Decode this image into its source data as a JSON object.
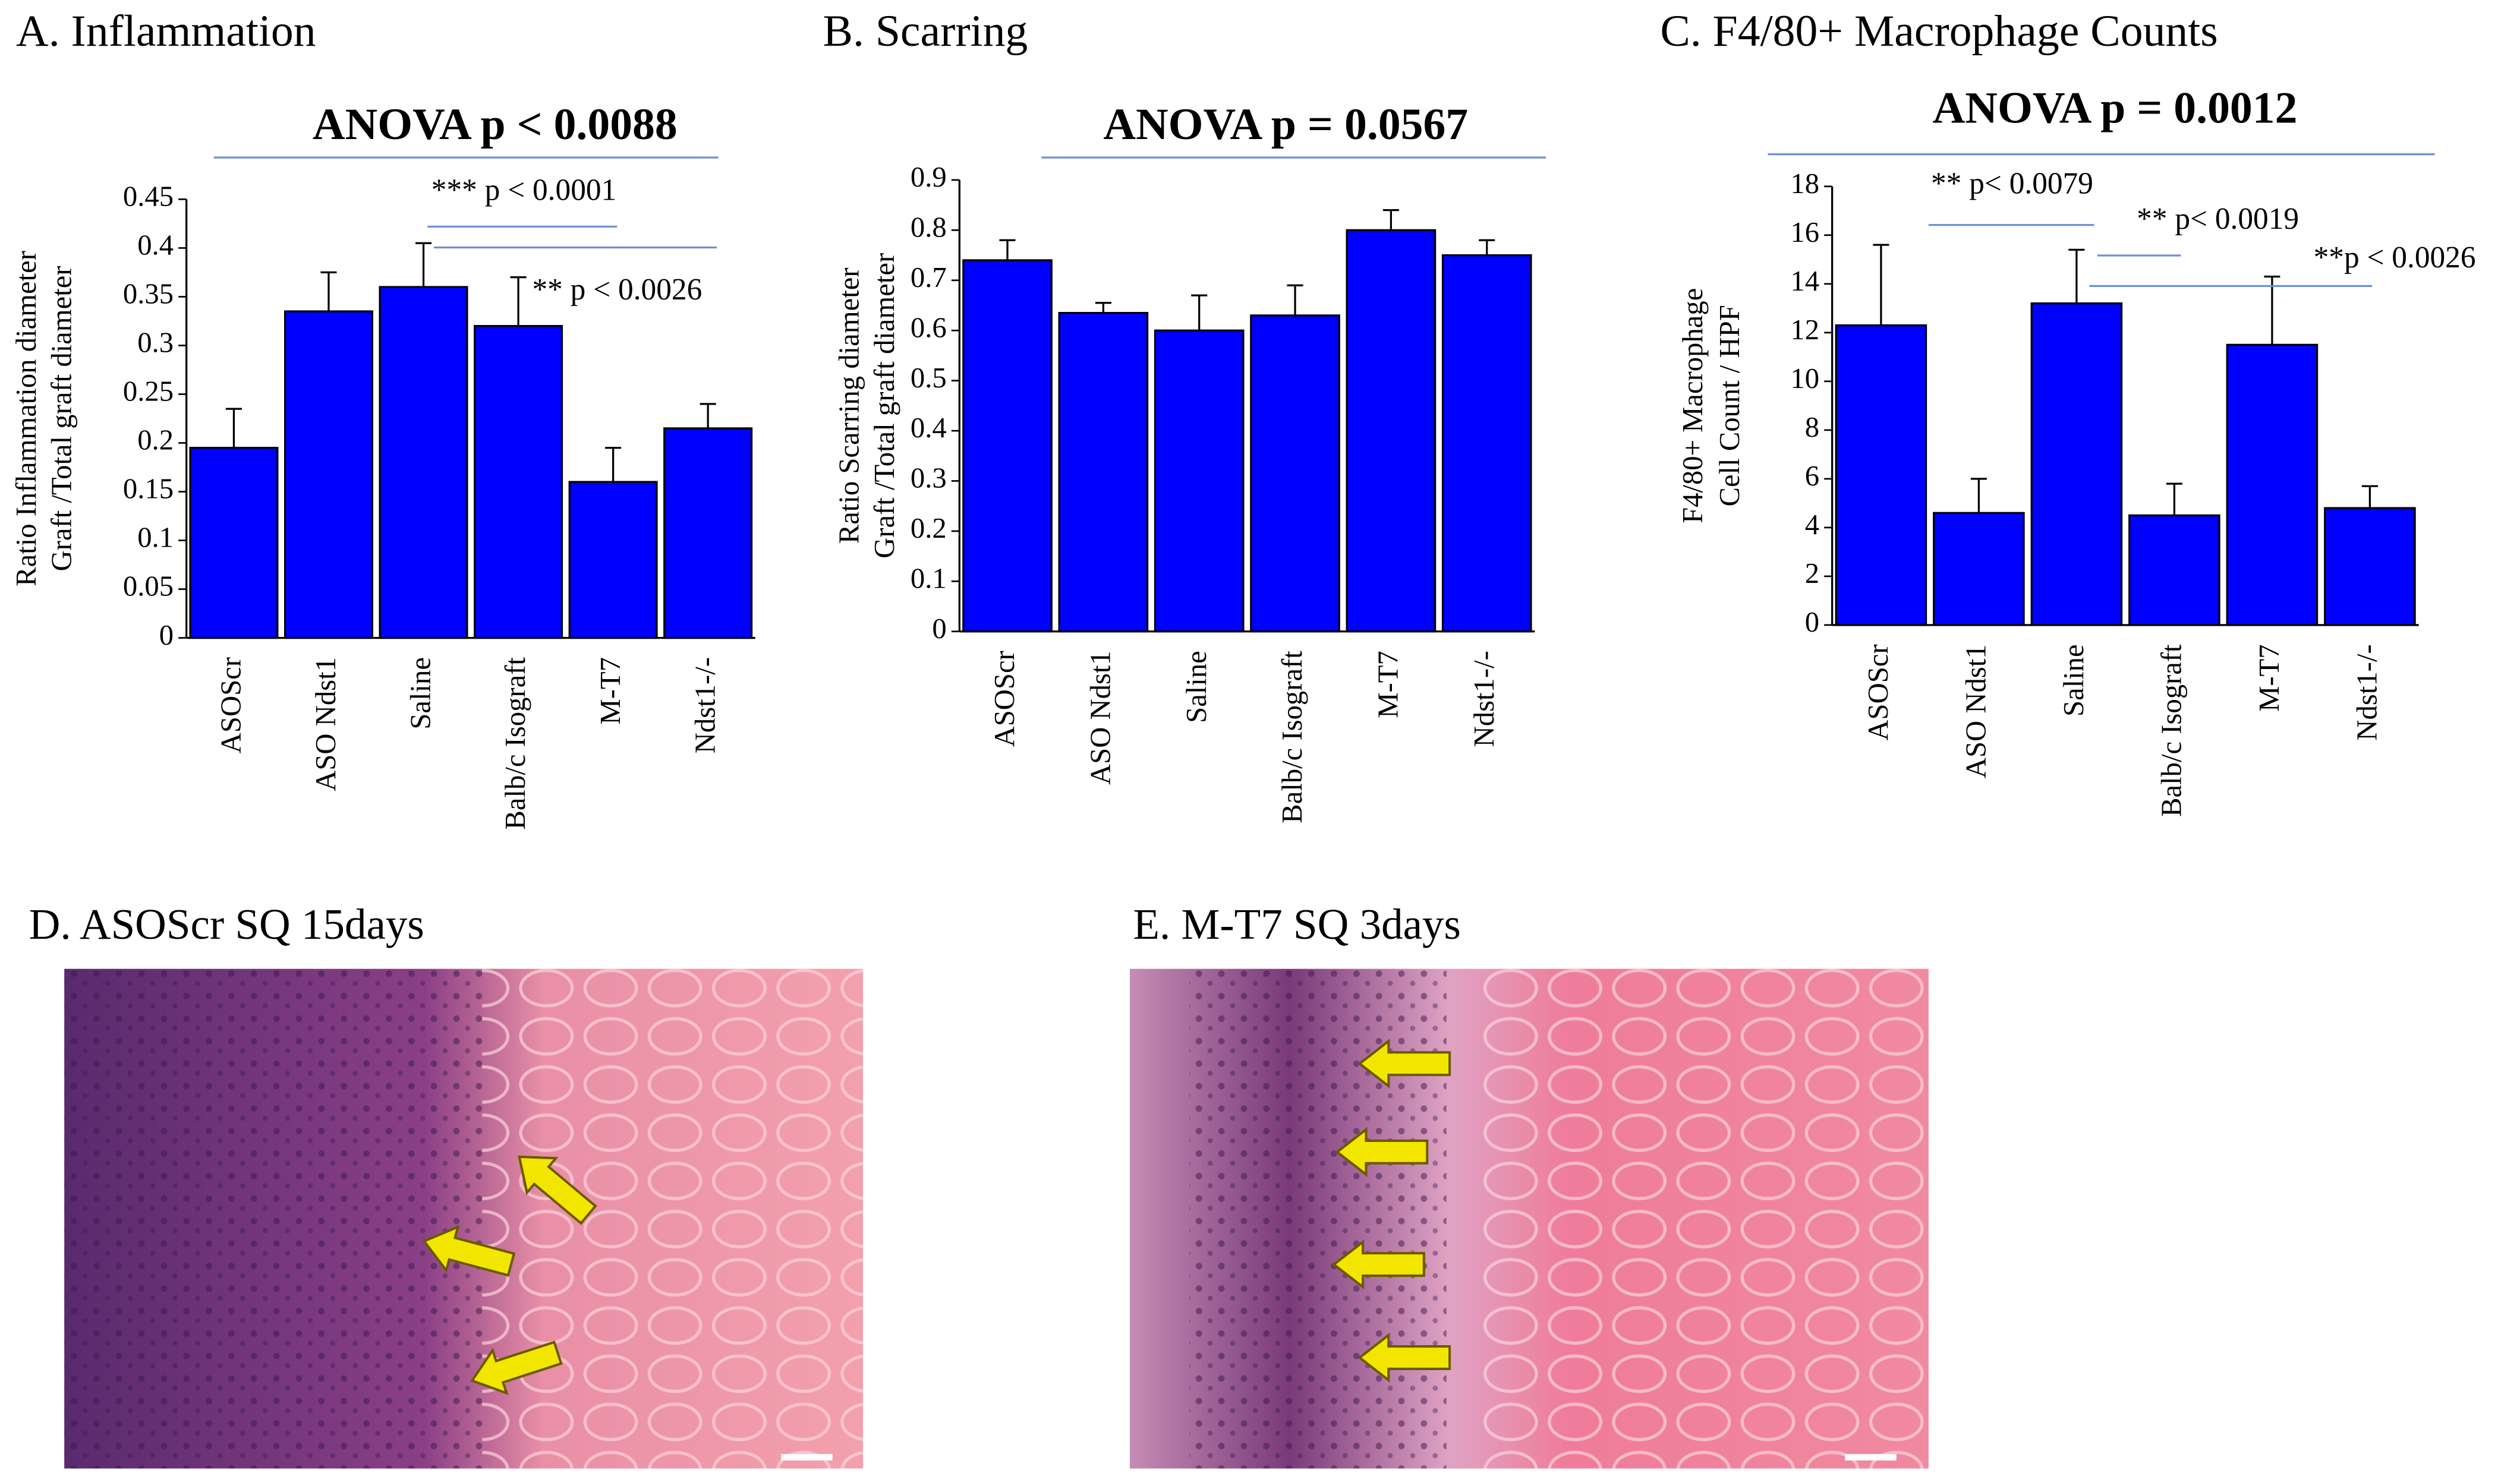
{
  "chart_data": [
    {
      "type": "bar",
      "title": "A. Inflammation",
      "ylabel": [
        "Ratio Inflammation  diameter",
        "Graft /Total graft diameter"
      ],
      "categories": [
        "ASOScr",
        "ASO Ndst1",
        "Saline",
        "Balb/c Isograft",
        "M-T7",
        "Ndst1-/-"
      ],
      "values": [
        0.195,
        0.335,
        0.36,
        0.32,
        0.16,
        0.215
      ],
      "errors": [
        0.04,
        0.04,
        0.045,
        0.05,
        0.035,
        0.025
      ],
      "color": "#0000ff",
      "ylim": [
        0,
        0.45
      ],
      "yticks": [
        0,
        0.05,
        0.1,
        0.15,
        0.2,
        0.25,
        0.3,
        0.35,
        0.4,
        0.45
      ],
      "annotations": [
        "ANOVA p < 0.0088",
        "*** p < 0.0001",
        "** p < 0.0026"
      ]
    },
    {
      "type": "bar",
      "title": "B. Scarring",
      "ylabel": [
        "Ratio Scarring diameter",
        "Graft /Total graft diameter"
      ],
      "categories": [
        "ASOScr",
        "ASO Ndst1",
        "Saline",
        "Balb/c Isograft",
        "M-T7",
        "Ndst1-/-"
      ],
      "values": [
        0.74,
        0.635,
        0.6,
        0.63,
        0.8,
        0.75
      ],
      "errors": [
        0.04,
        0.02,
        0.07,
        0.06,
        0.04,
        0.03
      ],
      "color": "#0000ff",
      "ylim": [
        0,
        0.9
      ],
      "yticks": [
        0,
        0.1,
        0.2,
        0.3,
        0.4,
        0.5,
        0.6,
        0.7,
        0.8,
        0.9
      ],
      "annotations": [
        "ANOVA p = 0.0567"
      ]
    },
    {
      "type": "bar",
      "title": "C. F4/80+ Macrophage Counts",
      "ylabel": [
        "F4/80+ Macrophage",
        "Cell Count / HPF"
      ],
      "categories": [
        "ASOScr",
        "ASO Ndst1",
        "Saline",
        "Balb/c Isograft",
        "M-T7",
        "Ndst1-/-"
      ],
      "values": [
        12.3,
        4.6,
        13.2,
        4.5,
        11.5,
        4.8
      ],
      "errors": [
        3.3,
        1.4,
        2.2,
        1.3,
        2.8,
        0.9
      ],
      "color": "#0000ff",
      "ylim": [
        0,
        18
      ],
      "yticks": [
        0,
        2,
        4,
        6,
        8,
        10,
        12,
        14,
        16,
        18
      ],
      "annotations": [
        "ANOVA p = 0.0012",
        "** p< 0.0079",
        "** p< 0.0019",
        "**p < 0.0026"
      ]
    }
  ],
  "images": [
    {
      "title": "D. ASOScr SQ 15days"
    },
    {
      "title": "E. M-T7 SQ 3days"
    }
  ]
}
